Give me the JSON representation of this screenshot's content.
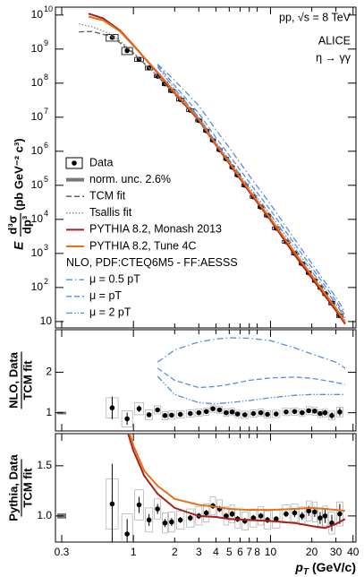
{
  "chart_data": [
    {
      "type": "line",
      "log_x": true,
      "log_y": true,
      "xlim": [
        0.27,
        42
      ],
      "ylim": [
        6.5,
        17000000000.0
      ],
      "yticks": [
        10,
        {
          "value": 100,
          "label": "10",
          "sup": "2"
        },
        {
          "value": 1000,
          "label": "10",
          "sup": "3"
        },
        {
          "value": 10000,
          "label": "10",
          "sup": "4"
        },
        {
          "value": 100000,
          "label": "10",
          "sup": "5"
        },
        {
          "value": 1000000,
          "label": "10",
          "sup": "6"
        },
        {
          "value": 10000000,
          "label": "10",
          "sup": "7"
        },
        {
          "value": 100000000,
          "label": "10",
          "sup": "8"
        },
        {
          "value": 1000000000,
          "label": "10",
          "sup": "9"
        },
        {
          "value": 10000000000,
          "label": "10",
          "sup": "10"
        }
      ],
      "ylabel": {
        "left": "E",
        "num": "d³σ",
        "den": "dp³",
        "unit": "(pb GeV⁻² c³)"
      },
      "annotations": [
        "pp, √s = 8 TeV",
        "ALICE",
        "η → γγ"
      ],
      "norm_unc_label": "norm. unc. 2.6%",
      "nlo_header": "NLO, PDF:CTEQ6M5 - FF:AESSS",
      "series": [
        {
          "name": "Data",
          "color": "#000000",
          "style": "points",
          "x": [
            0.7,
            0.9,
            1.1,
            1.3,
            1.5,
            1.7,
            1.9,
            2.2,
            2.6,
            3.0,
            3.4,
            3.8,
            4.25,
            4.75,
            5.25,
            5.75,
            6.5,
            7.5,
            8.5,
            9.5,
            11,
            13,
            15,
            17,
            19,
            21,
            23,
            25,
            28,
            32
          ],
          "values": [
            2200000000.0,
            900000000.0,
            500000000.0,
            280000000.0,
            160000000.0,
            95000000.0,
            60000000.0,
            33000000.0,
            16000000.0,
            8000000.0,
            4000000.0,
            2100000.0,
            1100000.0,
            600000.0,
            340000.0,
            200000.0,
            100000.0,
            46000.0,
            23000.0,
            13000.0,
            5500.0,
            2200.0,
            1000.0,
            500.0,
            270.0,
            160.0,
            100.0,
            65.0,
            35.0,
            15.0
          ]
        },
        {
          "name": "TCM fit",
          "color": "#555555",
          "style": "dashed",
          "x": [
            0.4,
            0.5,
            0.7,
            1,
            1.5,
            2,
            3,
            4,
            5,
            7,
            10,
            15,
            20,
            30,
            35
          ],
          "values": [
            3200000000.0,
            3300000000.0,
            2300000000.0,
            750000000.0,
            160000000.0,
            47000000.0,
            8000000.0,
            1500000.0,
            450000.0,
            68000.0,
            10000.0,
            1000.0,
            210.0,
            23.0,
            9
          ]
        },
        {
          "name": "Tsallis fit",
          "color": "#888888",
          "style": "dotted",
          "x": [
            0.4,
            0.5,
            0.7,
            1,
            1.5,
            2,
            3,
            4,
            5,
            7,
            10,
            15,
            20,
            30,
            35
          ],
          "values": [
            5500000000.0,
            4500000000.0,
            2700000000.0,
            800000000.0,
            160000000.0,
            46000000.0,
            8000000.0,
            1500000.0,
            450000.0,
            69000.0,
            10500.0,
            1100.0,
            230.0,
            26.0,
            11.0
          ]
        },
        {
          "name": "PYTHIA 8.2, Monash 2013",
          "color": "#a8201a",
          "style": "solid",
          "x": [
            0.47,
            0.6,
            0.8,
            1,
            1.5,
            2,
            3,
            4,
            5,
            7,
            10,
            15,
            20,
            30,
            35
          ],
          "values": [
            11000000000.0,
            8000000000.0,
            3500000000.0,
            1300000000.0,
            200000000.0,
            52000000.0,
            8200000.0,
            1500000.0,
            440000.0,
            65000.0,
            9500.0,
            900.0,
            190.0,
            21.0,
            8.5
          ]
        },
        {
          "name": "PYTHIA 8.2, Tune 4C",
          "color": "#e8701a",
          "style": "solid",
          "x": [
            0.47,
            0.6,
            0.8,
            1,
            1.5,
            2,
            3,
            4,
            5,
            7,
            10,
            15,
            20,
            30,
            35
          ],
          "values": [
            9000000000.0,
            7000000000.0,
            3300000000.0,
            1250000000.0,
            210000000.0,
            55000000.0,
            8800000.0,
            1620000.0,
            480000.0,
            72000.0,
            10600.0,
            1070.0,
            225.0,
            24.5,
            9.5
          ]
        },
        {
          "name": "μ = 0.5 pT",
          "color": "#5a8fd8",
          "style": "dashdot",
          "x": [
            1.5,
            2,
            3,
            4,
            5,
            7,
            10,
            15,
            20,
            30,
            35
          ],
          "values": [
            360000000.0,
            120000000.0,
            22000000.0,
            4200000.0,
            1280000.0,
            193000.0,
            27800.0,
            2600.0,
            510.0,
            52.0,
            19.0
          ]
        },
        {
          "name": "μ = pT",
          "color": "#5a8fd8",
          "style": "dashed",
          "x": [
            1.5,
            2,
            3,
            4,
            5,
            7,
            10,
            15,
            20,
            30,
            35
          ],
          "values": [
            340000000.0,
            85000000.0,
            13000000.0,
            2500000.0,
            760000.0,
            122000.0,
            18600.0,
            1880.0,
            390.0,
            40.0,
            15.0
          ]
        },
        {
          "name": "μ = 2 pT",
          "color": "#5a8fd8",
          "style": "dashdotdot",
          "x": [
            1.5,
            2,
            3,
            4,
            5,
            7,
            10,
            15,
            20,
            30,
            35
          ],
          "values": [
            300000000.0,
            68000000.0,
            10000000.0,
            1830000.0,
            560000.0,
            88000.0,
            13700.0,
            1430.0,
            300.0,
            33.0,
            13.0
          ]
        }
      ]
    },
    {
      "type": "line",
      "log_x": true,
      "log_y": false,
      "xlim": [
        0.27,
        42
      ],
      "ylim": [
        0.55,
        3.05
      ],
      "yticks": [
        1,
        2
      ],
      "ylabel": {
        "num": "NLO, Data",
        "den": "TCM fit"
      },
      "norm_unc": {
        "x": 0.3,
        "value": 1,
        "error": 0.026
      },
      "series": [
        {
          "color": "#000000",
          "style": "points",
          "x": [
            0.7,
            0.9,
            1.1,
            1.3,
            1.5,
            1.7,
            1.9,
            2.2,
            2.6,
            3.0,
            3.4,
            3.8,
            4.25,
            4.75,
            5.25,
            5.75,
            6.5,
            7.5,
            8.5,
            9.5,
            11,
            13,
            15,
            17,
            19,
            21,
            23,
            25,
            28,
            32
          ],
          "values": [
            1.12,
            0.85,
            1.1,
            0.95,
            1.07,
            0.93,
            0.94,
            0.96,
            0.98,
            1.0,
            1.03,
            1.1,
            1.07,
            1.0,
            1.02,
            0.97,
            0.95,
            0.98,
            1.0,
            0.96,
            0.97,
            1.02,
            1.03,
            1.0,
            1.05,
            1.04,
            0.98,
            1.0,
            0.93,
            1.02
          ],
          "errors": [
            0.28,
            0.15,
            0.08,
            0.06,
            0.05,
            0.04,
            0.04,
            0.03,
            0.03,
            0.03,
            0.03,
            0.03,
            0.03,
            0.03,
            0.03,
            0.03,
            0.03,
            0.03,
            0.03,
            0.03,
            0.03,
            0.03,
            0.04,
            0.04,
            0.05,
            0.05,
            0.06,
            0.07,
            0.08,
            0.1
          ],
          "syst": [
            0.25,
            0.2,
            0.15,
            0.12,
            0.1,
            0.1,
            0.1,
            0.09,
            0.09,
            0.09,
            0.09,
            0.09,
            0.09,
            0.09,
            0.09,
            0.09,
            0.09,
            0.09,
            0.09,
            0.09,
            0.09,
            0.09,
            0.09,
            0.09,
            0.1,
            0.1,
            0.1,
            0.1,
            0.11,
            0.12
          ]
        },
        {
          "color": "#5a8fd8",
          "style": "dashdot",
          "x": [
            1.5,
            2,
            3,
            4,
            5,
            7,
            10,
            15,
            20,
            30,
            35
          ],
          "values": [
            2.25,
            2.55,
            2.75,
            2.82,
            2.85,
            2.84,
            2.78,
            2.6,
            2.45,
            2.25,
            2.1
          ]
        },
        {
          "color": "#5a8fd8",
          "style": "dashed",
          "x": [
            1.5,
            2,
            3,
            4,
            5,
            7,
            10,
            15,
            20,
            30,
            35
          ],
          "values": [
            2.1,
            1.8,
            1.62,
            1.65,
            1.7,
            1.8,
            1.86,
            1.88,
            1.85,
            1.75,
            1.7
          ]
        },
        {
          "color": "#5a8fd8",
          "style": "dashdotdot",
          "x": [
            1.5,
            2,
            3,
            4,
            5,
            7,
            10,
            15,
            20,
            30,
            35
          ],
          "values": [
            1.9,
            1.45,
            1.25,
            1.22,
            1.25,
            1.3,
            1.37,
            1.43,
            1.45,
            1.45,
            1.45
          ]
        }
      ]
    },
    {
      "type": "line",
      "log_x": true,
      "log_y": false,
      "xlim": [
        0.27,
        42
      ],
      "ylim": [
        0.74,
        1.82
      ],
      "xticks": [
        0.3,
        1,
        2,
        3,
        4,
        5,
        6,
        7,
        8,
        10,
        20,
        30,
        40
      ],
      "yticks": [
        {
          "value": 1,
          "label": "1.0"
        },
        {
          "value": 1.5,
          "label": "1.5"
        }
      ],
      "ylabel": {
        "num": "Pythia, Data",
        "den": "TCM fit"
      },
      "xlabel": {
        "main": "p",
        "sub": "T",
        "unit": "(GeV/c)"
      },
      "norm_unc": {
        "x": 0.3,
        "value": 1,
        "error": 0.026
      },
      "series": [
        {
          "color": "#000000",
          "style": "points",
          "x": [
            0.7,
            0.9,
            1.1,
            1.3,
            1.5,
            1.7,
            1.9,
            2.2,
            2.6,
            3.0,
            3.4,
            3.8,
            4.25,
            4.75,
            5.25,
            5.75,
            6.5,
            7.5,
            8.5,
            9.5,
            11,
            13,
            15,
            17,
            19,
            21,
            23,
            25,
            28,
            32
          ],
          "values": [
            1.12,
            0.82,
            1.11,
            0.96,
            1.07,
            0.93,
            0.94,
            0.96,
            0.98,
            1.0,
            1.03,
            1.1,
            1.07,
            1.0,
            1.02,
            0.97,
            0.95,
            0.98,
            1.0,
            0.96,
            0.97,
            1.02,
            1.03,
            1.0,
            1.05,
            1.04,
            0.98,
            1.0,
            0.93,
            1.02
          ],
          "errors": [
            0.4,
            0.15,
            0.08,
            0.06,
            0.05,
            0.04,
            0.04,
            0.03,
            0.03,
            0.03,
            0.03,
            0.03,
            0.03,
            0.03,
            0.03,
            0.03,
            0.03,
            0.03,
            0.03,
            0.03,
            0.03,
            0.03,
            0.04,
            0.04,
            0.05,
            0.05,
            0.06,
            0.07,
            0.08,
            0.1
          ],
          "syst": [
            0.25,
            0.2,
            0.15,
            0.12,
            0.1,
            0.1,
            0.1,
            0.09,
            0.09,
            0.09,
            0.09,
            0.09,
            0.09,
            0.09,
            0.09,
            0.09,
            0.09,
            0.09,
            0.09,
            0.09,
            0.09,
            0.09,
            0.09,
            0.09,
            0.1,
            0.1,
            0.1,
            0.1,
            0.11,
            0.12
          ]
        },
        {
          "color": "#a8201a",
          "style": "solid",
          "x": [
            0.9,
            1,
            1.2,
            1.5,
            2,
            3,
            4,
            5,
            7,
            10,
            15,
            20,
            25,
            30,
            35
          ],
          "values": [
            1.85,
            1.65,
            1.4,
            1.22,
            1.08,
            1.0,
            0.99,
            0.97,
            0.96,
            0.95,
            0.93,
            0.9,
            0.88,
            0.92,
            0.97
          ]
        },
        {
          "color": "#e8701a",
          "style": "solid",
          "x": [
            0.9,
            1,
            1.2,
            1.5,
            2,
            3,
            4,
            5,
            7,
            10,
            15,
            20,
            25,
            30,
            35
          ],
          "values": [
            1.9,
            1.7,
            1.45,
            1.3,
            1.17,
            1.11,
            1.09,
            1.07,
            1.06,
            1.06,
            1.07,
            1.08,
            1.07,
            1.06,
            1.05
          ]
        }
      ]
    }
  ]
}
